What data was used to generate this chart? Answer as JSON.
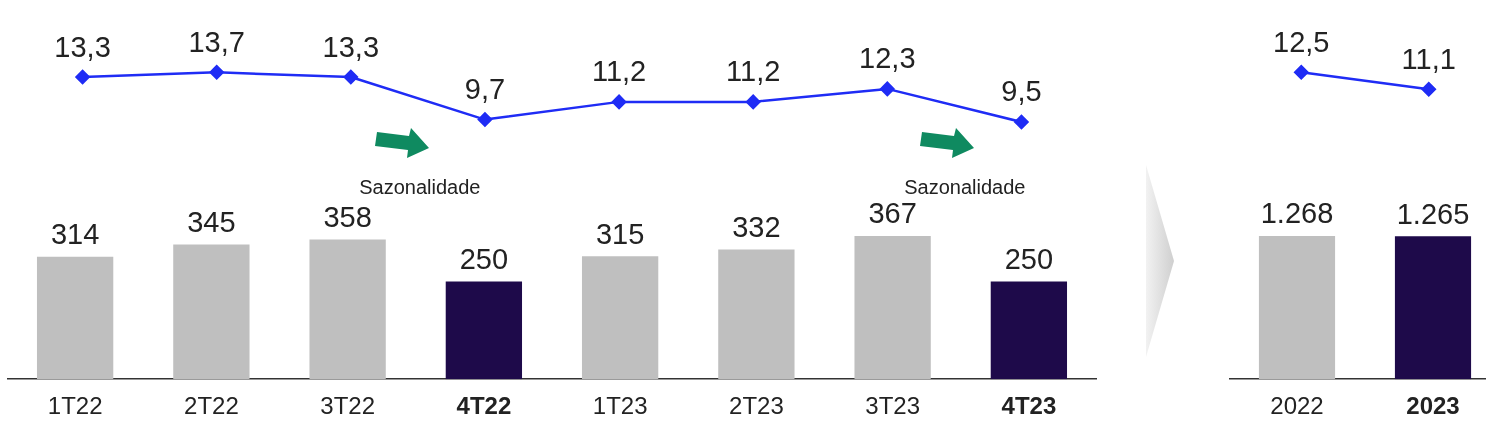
{
  "chart_data": [
    {
      "type": "line",
      "categories": [
        null,
        null,
        null,
        null,
        null,
        null,
        null,
        null
      ],
      "series": [
        {
          "color": "#1f2cf5",
          "values": [
            13.3,
            13.7,
            13.3,
            9.7,
            11.2,
            11.2,
            12.3,
            9.5
          ],
          "value_labels": [
            "13,3",
            "13,7",
            "13,3",
            "9,7",
            "11,2",
            "11,2",
            "12,3",
            "9,5"
          ]
        }
      ],
      "marker": "diamond",
      "legend": false,
      "grid": false,
      "tick_labels": false
    },
    {
      "type": "bar",
      "categories": [
        "1T22",
        "2T22",
        "3T22",
        "4T22",
        "1T23",
        "2T23",
        "3T23",
        "4T23"
      ],
      "series": [
        {
          "colors": [
            "#bfbfbf",
            "#bfbfbf",
            "#bfbfbf",
            "#1e0a4a",
            "#bfbfbf",
            "#bfbfbf",
            "#bfbfbf",
            "#1e0a4a"
          ],
          "values": [
            314,
            345,
            358,
            250,
            315,
            332,
            367,
            250
          ],
          "value_labels": [
            "314",
            "345",
            "358",
            "250",
            "315",
            "332",
            "367",
            "250"
          ]
        }
      ],
      "legend": false,
      "grid": false,
      "tick_labels": "x",
      "annotations": [
        "Sazonalidade",
        "Sazonalidade"
      ]
    },
    {
      "type": "line",
      "categories": [
        null,
        null
      ],
      "series": [
        {
          "color": "#1f2cf5",
          "values": [
            12.5,
            11.1
          ],
          "value_labels": [
            "12,5",
            "11,1"
          ]
        }
      ],
      "marker": "diamond",
      "legend": false,
      "grid": false,
      "tick_labels": false
    },
    {
      "type": "bar",
      "categories": [
        "2022",
        "2023"
      ],
      "series": [
        {
          "colors": [
            "#bfbfbf",
            "#1e0a4a"
          ],
          "values": [
            1268,
            1265
          ],
          "value_labels": [
            "1.268",
            "1.265"
          ]
        }
      ],
      "legend": false,
      "grid": false,
      "tick_labels": "x"
    }
  ]
}
